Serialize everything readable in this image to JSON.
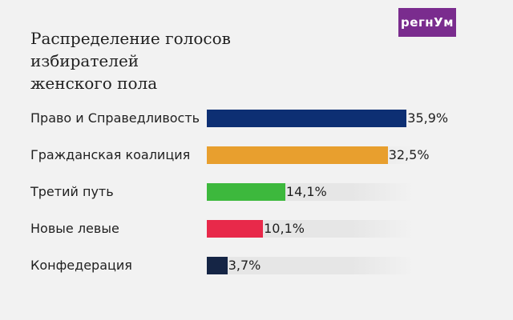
{
  "logo": {
    "text": "регнУм"
  },
  "chart_data": {
    "type": "bar",
    "orientation": "horizontal",
    "title": "Распределение голосов избирателей женского пола",
    "title_lines": [
      "Распределение голосов избирателей",
      "женского пола"
    ],
    "categories": [
      "Право и Справедливость",
      "Гражданская коалиция",
      "Третий путь",
      "Новые левые",
      "Конфедерация"
    ],
    "values": [
      35.9,
      32.5,
      14.1,
      10.1,
      3.7
    ],
    "value_labels": [
      "35,9%",
      "32,5%",
      "14,1%",
      "10,1%",
      "3,7%"
    ],
    "colors": [
      "#0d2f73",
      "#e89f2e",
      "#3db83d",
      "#e8294a",
      "#152545"
    ],
    "xlim": [
      0,
      36
    ],
    "grid": false
  }
}
